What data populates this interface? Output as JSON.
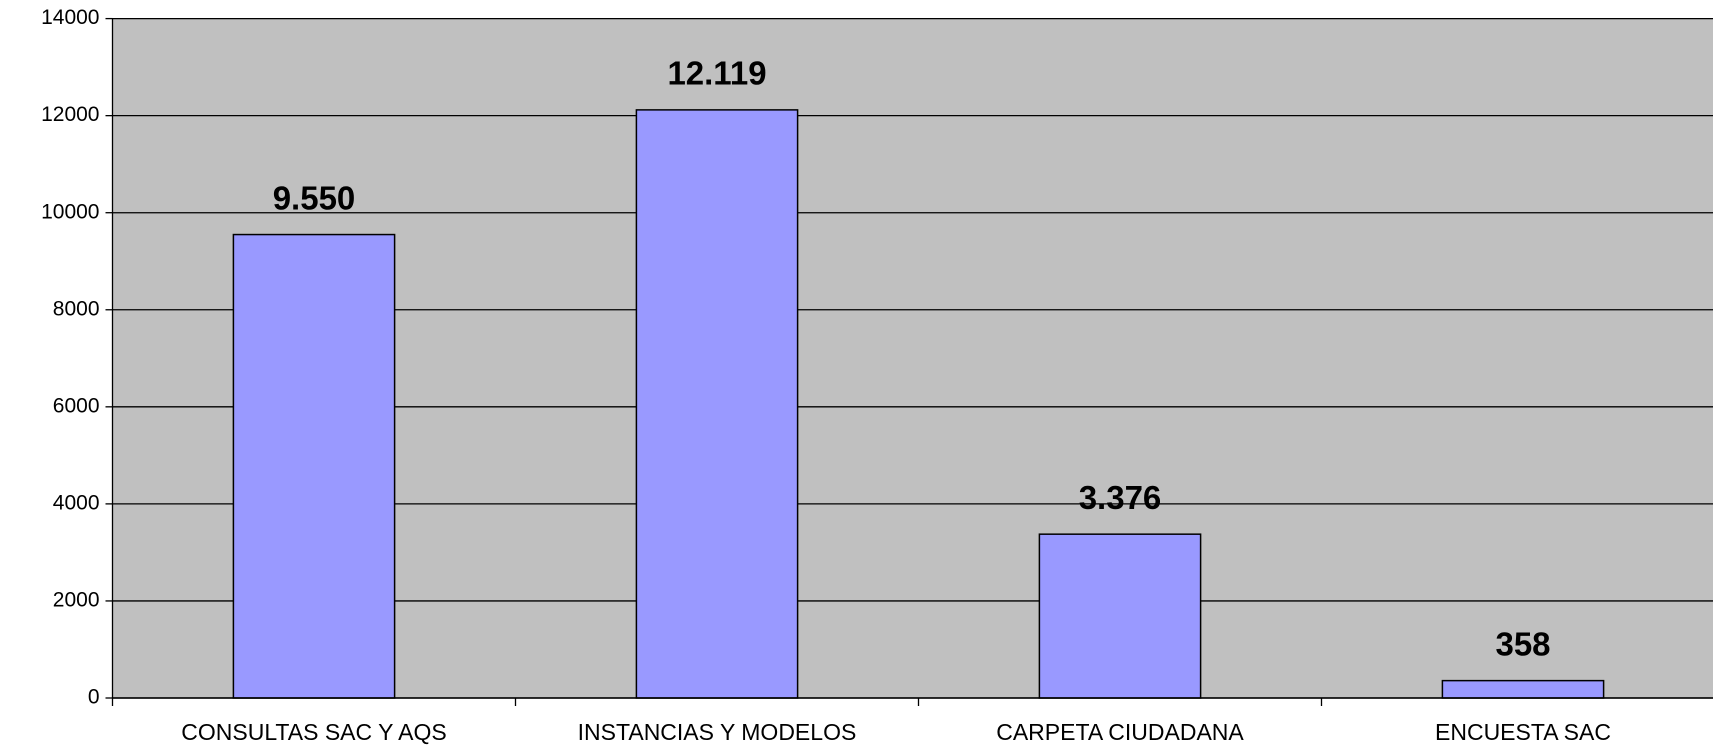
{
  "chart_data": {
    "type": "bar",
    "categories": [
      "CONSULTAS SAC Y AQS",
      "INSTANCIAS Y MODELOS",
      "CARPETA CIUDADANA",
      "ENCUESTA SAC"
    ],
    "values": [
      9550,
      12119,
      3376,
      358
    ],
    "value_labels": [
      "9.550",
      "12.119",
      "3.376",
      "358"
    ],
    "color": "#9999ff",
    "ylim": [
      0,
      14000
    ],
    "yticks": [
      0,
      2000,
      4000,
      6000,
      8000,
      10000,
      12000,
      14000
    ],
    "grid": true
  }
}
